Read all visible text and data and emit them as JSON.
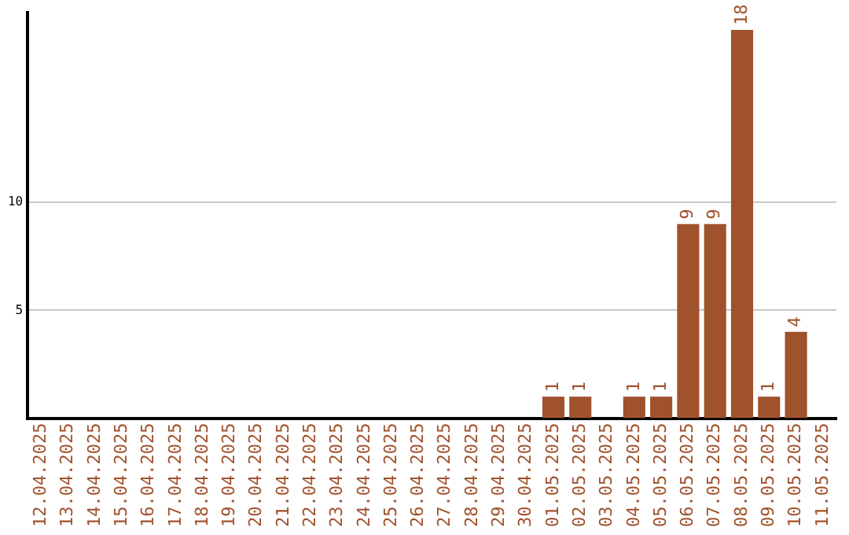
{
  "chart_data": {
    "type": "bar",
    "categories": [
      "12.04.2025",
      "13.04.2025",
      "14.04.2025",
      "15.04.2025",
      "16.04.2025",
      "17.04.2025",
      "18.04.2025",
      "19.04.2025",
      "20.04.2025",
      "21.04.2025",
      "22.04.2025",
      "23.04.2025",
      "24.04.2025",
      "25.04.2025",
      "26.04.2025",
      "27.04.2025",
      "28.04.2025",
      "29.04.2025",
      "30.04.2025",
      "01.05.2025",
      "02.05.2025",
      "03.05.2025",
      "04.05.2025",
      "05.05.2025",
      "06.05.2025",
      "07.05.2025",
      "08.05.2025",
      "09.05.2025",
      "10.05.2025",
      "11.05.2025"
    ],
    "values": [
      0,
      0,
      0,
      0,
      0,
      0,
      0,
      0,
      0,
      0,
      0,
      0,
      0,
      0,
      0,
      0,
      0,
      0,
      0,
      1,
      1,
      0,
      1,
      1,
      9,
      9,
      18,
      1,
      4,
      0
    ],
    "value_labels": [
      null,
      null,
      null,
      null,
      null,
      null,
      null,
      null,
      null,
      null,
      null,
      null,
      null,
      null,
      null,
      null,
      null,
      null,
      null,
      "1",
      "1",
      null,
      "1",
      "1",
      "9",
      "9",
      "18",
      "1",
      "4",
      null
    ],
    "color": "#a0522d",
    "ylim": [
      0,
      18.8
    ],
    "yticks": [
      5,
      10
    ],
    "grid": "y",
    "legend": false
  }
}
